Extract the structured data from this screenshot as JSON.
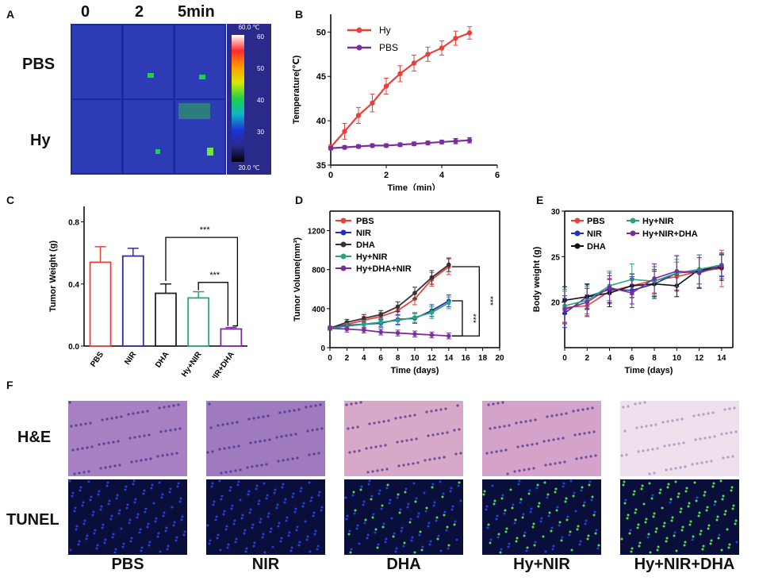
{
  "panels": {
    "A": "A",
    "B": "B",
    "C": "C",
    "D": "D",
    "E": "E",
    "F": "F"
  },
  "panelA": {
    "times": [
      "0",
      "2",
      "5min"
    ],
    "rows": [
      "PBS",
      "Hy"
    ],
    "colorbar": {
      "max_label": "60.0 ℃",
      "min_label": "20.0 ℃",
      "ticks": [
        "60",
        "50",
        "40",
        "30"
      ],
      "colors": [
        "#ffffff",
        "#ff2a2a",
        "#ff9a00",
        "#d8e800",
        "#1fd04a",
        "#11b4c8",
        "#1a33d6",
        "#2a2a8a",
        "#000000"
      ]
    }
  },
  "chart_data": [
    {
      "id": "B",
      "type": "line",
      "title": "",
      "xlabel": "Time（min）",
      "ylabel": "Temperature(℃)",
      "xlim": [
        0,
        6
      ],
      "ylim": [
        35,
        52
      ],
      "xticks": [
        "0",
        "2",
        "4",
        "6"
      ],
      "yticks": [
        "35",
        "40",
        "45",
        "50"
      ],
      "series": [
        {
          "name": "Hy",
          "color": "#e8413c",
          "x": [
            0,
            0.5,
            1,
            1.5,
            2,
            2.5,
            3,
            3.5,
            4,
            4.5,
            5
          ],
          "y": [
            37.0,
            38.8,
            40.6,
            42.0,
            43.9,
            45.3,
            46.5,
            47.5,
            48.2,
            49.3,
            49.9
          ],
          "err": [
            0.3,
            0.9,
            0.9,
            1.0,
            0.9,
            0.9,
            0.9,
            0.8,
            0.8,
            0.8,
            0.7
          ]
        },
        {
          "name": "PBS",
          "color": "#7a2d9c",
          "x": [
            0,
            0.5,
            1,
            1.5,
            2,
            2.5,
            3,
            3.5,
            4,
            4.5,
            5
          ],
          "y": [
            36.9,
            37.0,
            37.1,
            37.2,
            37.2,
            37.3,
            37.4,
            37.5,
            37.6,
            37.7,
            37.8
          ],
          "err": [
            0.2,
            0.2,
            0.2,
            0.2,
            0.2,
            0.2,
            0.2,
            0.2,
            0.2,
            0.3,
            0.3
          ]
        }
      ]
    },
    {
      "id": "C",
      "type": "bar",
      "title": "",
      "xlabel": "",
      "ylabel": "Tumor Weight (g)",
      "ylim": [
        0,
        0.9
      ],
      "yticks": [
        "0.0",
        "0.4",
        "0.8"
      ],
      "categories": [
        "PBS",
        "NIR",
        "DHA",
        "Hy+NIR",
        "Hy+NIR+DHA"
      ],
      "values": [
        0.54,
        0.58,
        0.34,
        0.31,
        0.11
      ],
      "errors": [
        0.1,
        0.05,
        0.06,
        0.04,
        0.01
      ],
      "colors": [
        "#e8413c",
        "#2b2f9e",
        "#222222",
        "#2aa27a",
        "#7a2d9c"
      ],
      "annotations": [
        "***",
        "***"
      ]
    },
    {
      "id": "D",
      "type": "line",
      "title": "",
      "xlabel": "Time (days)",
      "ylabel": "Tumor Volume(mm³)",
      "xlim": [
        0,
        20
      ],
      "ylim": [
        0,
        1400
      ],
      "xticks": [
        "0",
        "2",
        "4",
        "6",
        "8",
        "10",
        "12",
        "14",
        "16",
        "18",
        "20"
      ],
      "yticks": [
        "0",
        "400",
        "800",
        "1200"
      ],
      "annotations": [
        "***",
        "***"
      ],
      "series": [
        {
          "name": "PBS",
          "color": "#e8413c",
          "x": [
            0,
            2,
            4,
            6,
            8,
            10,
            12,
            14
          ],
          "y": [
            200,
            240,
            280,
            320,
            380,
            500,
            700,
            830
          ],
          "err": [
            20,
            30,
            40,
            40,
            50,
            60,
            70,
            80
          ]
        },
        {
          "name": "NIR",
          "color": "#2033b8",
          "x": [
            0,
            2,
            4,
            6,
            8,
            10,
            12,
            14
          ],
          "y": [
            200,
            230,
            240,
            250,
            290,
            300,
            380,
            480
          ],
          "err": [
            20,
            30,
            40,
            40,
            50,
            50,
            60,
            60
          ]
        },
        {
          "name": "DHA",
          "color": "#333333",
          "x": [
            0,
            2,
            4,
            6,
            8,
            10,
            12,
            14
          ],
          "y": [
            200,
            260,
            300,
            340,
            420,
            560,
            720,
            850
          ],
          "err": [
            20,
            30,
            40,
            40,
            50,
            60,
            70,
            70
          ]
        },
        {
          "name": "Hy+NIR",
          "color": "#2aa27a",
          "x": [
            0,
            2,
            4,
            6,
            8,
            10,
            12,
            14
          ],
          "y": [
            200,
            220,
            240,
            260,
            280,
            310,
            360,
            460
          ],
          "err": [
            20,
            30,
            40,
            40,
            50,
            50,
            60,
            60
          ]
        },
        {
          "name": "Hy+DHA+NIR",
          "color": "#7a2d9c",
          "x": [
            0,
            2,
            4,
            6,
            8,
            10,
            12,
            14
          ],
          "y": [
            200,
            190,
            180,
            160,
            150,
            140,
            130,
            120
          ],
          "err": [
            20,
            30,
            30,
            30,
            30,
            30,
            30,
            30
          ]
        }
      ]
    },
    {
      "id": "E",
      "type": "line",
      "title": "",
      "xlabel": "Time (days)",
      "ylabel": "Body weight (g)",
      "xlim": [
        0,
        15
      ],
      "ylim": [
        15,
        30
      ],
      "xticks": [
        "0",
        "2",
        "4",
        "6",
        "8",
        "10",
        "12",
        "14"
      ],
      "yticks": [
        "20",
        "25",
        "30"
      ],
      "series": [
        {
          "name": "PBS",
          "color": "#e8413c",
          "x": [
            0,
            2,
            4,
            6,
            8,
            10,
            12,
            14
          ],
          "y": [
            19.4,
            19.6,
            21.2,
            21.8,
            22.4,
            22.8,
            23.4,
            23.7
          ],
          "err": [
            1.8,
            1.2,
            1.4,
            1.3,
            1.5,
            1.6,
            1.8,
            2.0
          ]
        },
        {
          "name": "NIR",
          "color": "#2033b8",
          "x": [
            0,
            2,
            4,
            6,
            8,
            10,
            12,
            14
          ],
          "y": [
            18.8,
            20.6,
            21.4,
            21.3,
            22.0,
            23.2,
            23.4,
            24.0
          ],
          "err": [
            1.6,
            1.3,
            1.5,
            1.5,
            1.6,
            1.9,
            1.8,
            1.2
          ]
        },
        {
          "name": "DHA",
          "color": "#111111",
          "x": [
            0,
            2,
            4,
            6,
            8,
            10,
            12,
            14
          ],
          "y": [
            20.2,
            20.6,
            21.0,
            21.8,
            22.0,
            21.8,
            23.6,
            23.8
          ],
          "err": [
            1.5,
            1.4,
            1.5,
            1.3,
            1.4,
            1.2,
            1.6,
            1.4
          ]
        },
        {
          "name": "Hy+NIR",
          "color": "#2aa27a",
          "x": [
            0,
            2,
            4,
            6,
            8,
            10,
            12,
            14
          ],
          "y": [
            19.6,
            20.2,
            21.8,
            22.5,
            22.3,
            23.2,
            23.6,
            24.1
          ],
          "err": [
            1.8,
            1.5,
            1.6,
            1.7,
            1.6,
            1.5,
            1.6,
            1.2
          ]
        },
        {
          "name": "Hy+NIR+DHA",
          "color": "#7a2d9c",
          "x": [
            0,
            2,
            4,
            6,
            8,
            10,
            12,
            14
          ],
          "y": [
            19.2,
            20.0,
            21.6,
            21.0,
            22.6,
            23.4,
            23.2,
            24.0
          ],
          "err": [
            1.5,
            1.5,
            1.6,
            1.6,
            1.6,
            1.7,
            1.7,
            1.4
          ]
        }
      ]
    }
  ],
  "panelF": {
    "rows": [
      "H&E",
      "TUNEL"
    ],
    "cols": [
      "PBS",
      "NIR",
      "DHA",
      "Hy+NIR",
      "Hy+NIR+DHA"
    ],
    "he_colors": [
      "#a680c2",
      "#9f7abf",
      "#d8a8c8",
      "#d5a3c9",
      "#eee0ec"
    ],
    "tunel_green": [
      0.0,
      0.0,
      0.25,
      0.45,
      0.85
    ]
  }
}
